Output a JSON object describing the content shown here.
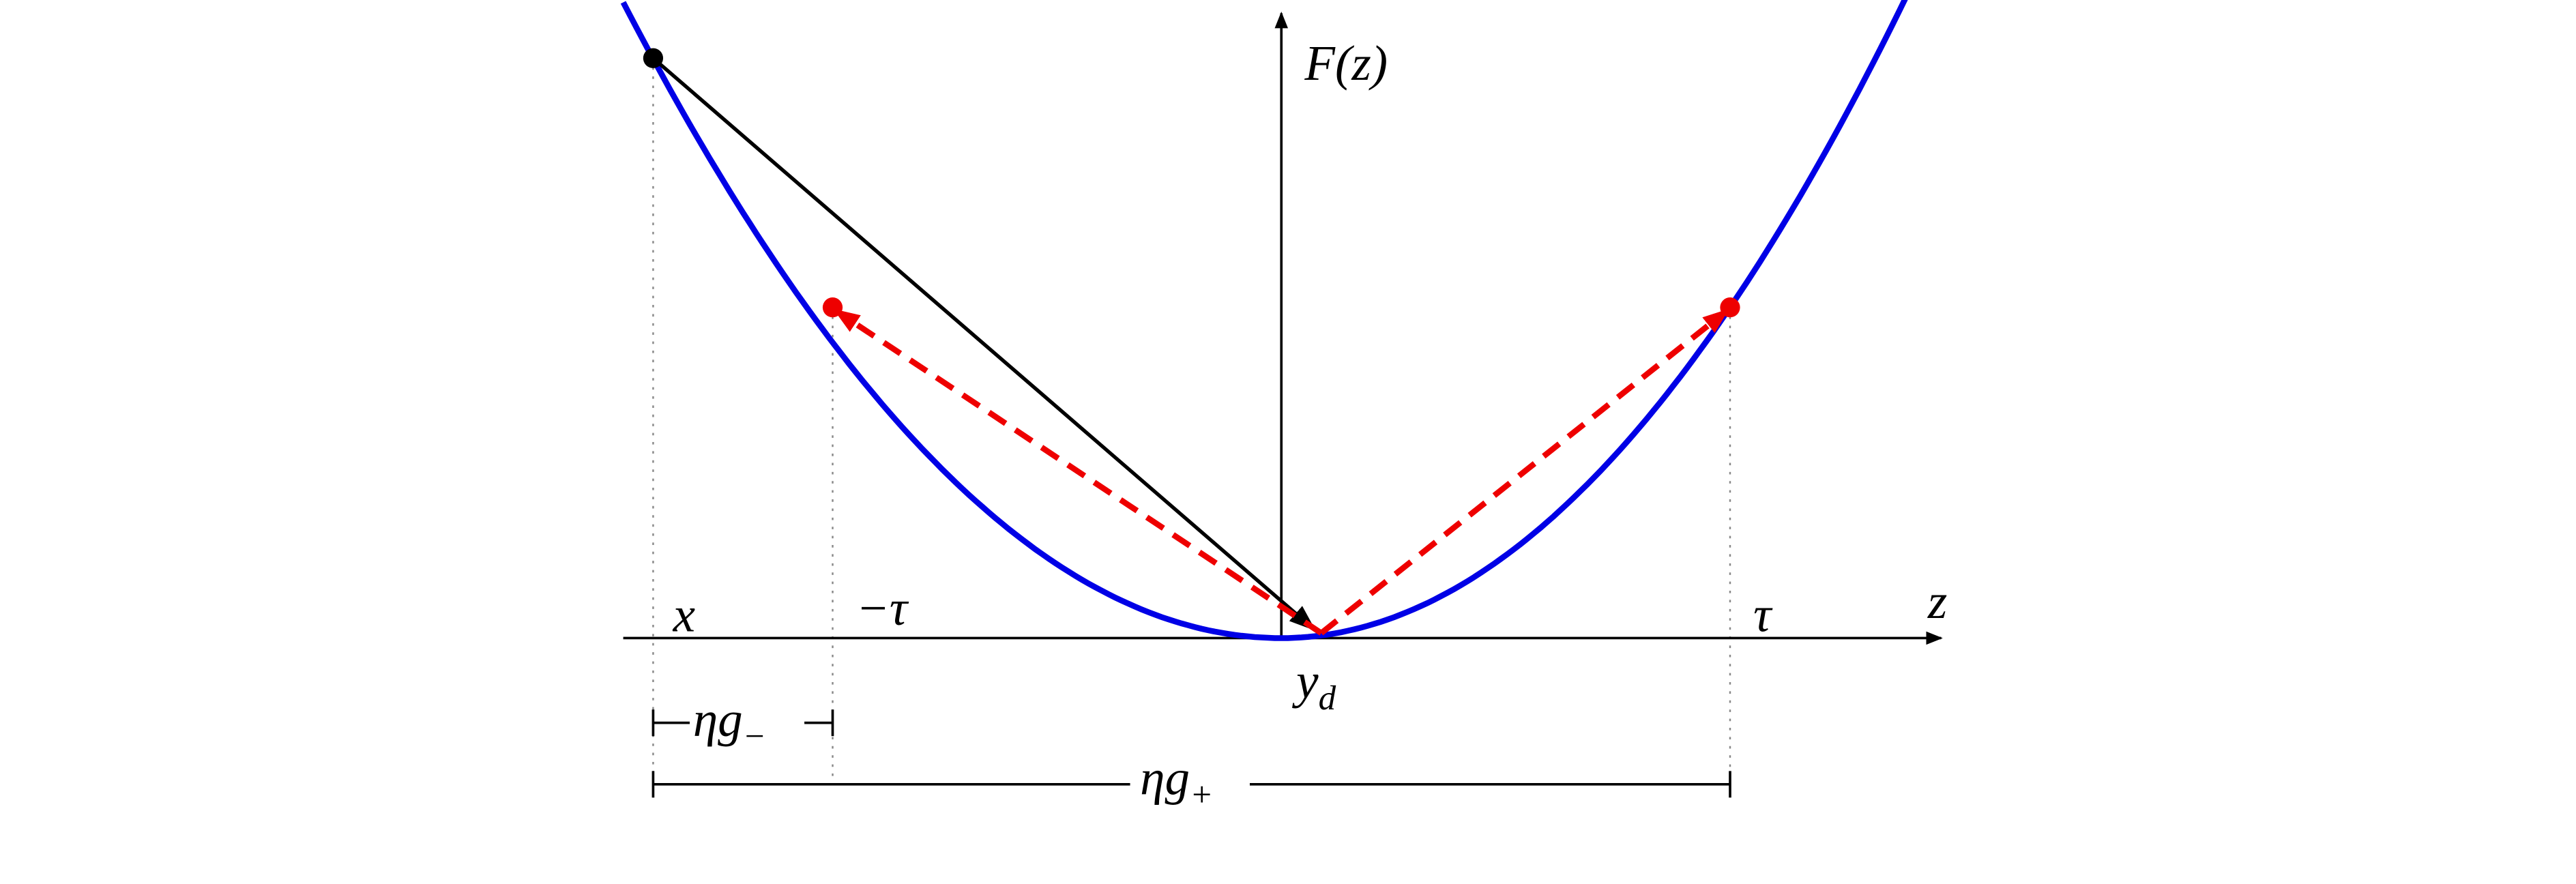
{
  "labels": {
    "f_axis": "F(z)",
    "z_axis": "z",
    "x_point": "x",
    "neg_tau": "−τ",
    "tau": "τ",
    "y_d": {
      "base": "y",
      "sub": "d"
    },
    "eta_g_minus": {
      "base": "ηg",
      "sub": "−"
    },
    "eta_g_plus": {
      "base": "ηg",
      "sub": "+"
    }
  }
}
